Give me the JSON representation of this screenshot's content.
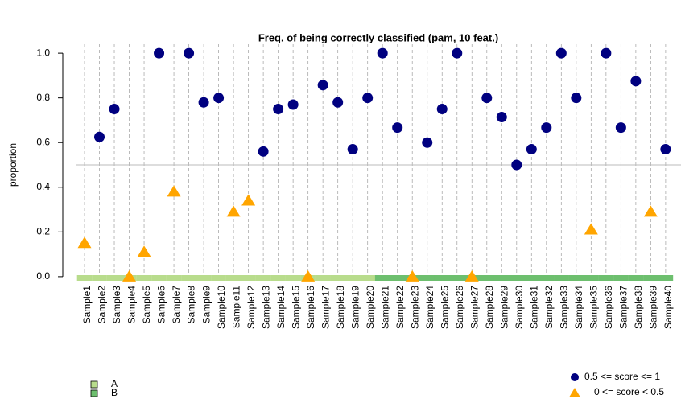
{
  "chart_data": {
    "type": "scatter",
    "title": "Freq. of being correctly classified (pam, 10 feat.)",
    "ylabel": "proportion",
    "categories": [
      "Sample1",
      "Sample2",
      "Sample3",
      "Sample4",
      "Sample5",
      "Sample6",
      "Sample7",
      "Sample8",
      "Sample9",
      "Sample10",
      "Sample11",
      "Sample12",
      "Sample13",
      "Sample14",
      "Sample15",
      "Sample16",
      "Sample17",
      "Sample18",
      "Sample19",
      "Sample20",
      "Sample21",
      "Sample22",
      "Sample23",
      "Sample24",
      "Sample25",
      "Sample26",
      "Sample27",
      "Sample28",
      "Sample29",
      "Sample30",
      "Sample31",
      "Sample32",
      "Sample33",
      "Sample34",
      "Sample35",
      "Sample36",
      "Sample37",
      "Sample38",
      "Sample39",
      "Sample40"
    ],
    "values": [
      0.15,
      0.625,
      0.75,
      0,
      0.11,
      1,
      0.38,
      1,
      0.78,
      0.8,
      0.29,
      0.34,
      0.56,
      0.75,
      0.77,
      0,
      0.857,
      0.78,
      0.57,
      0.8,
      1,
      0.667,
      0,
      0.6,
      0.75,
      1,
      0,
      0.8,
      0.714,
      0.5,
      0.57,
      0.667,
      1,
      0.8,
      0.21,
      1,
      0.667,
      0.875,
      0.29,
      0.57
    ],
    "groups": [
      "A",
      "A",
      "A",
      "A",
      "A",
      "A",
      "A",
      "A",
      "A",
      "A",
      "A",
      "A",
      "A",
      "A",
      "A",
      "A",
      "A",
      "A",
      "A",
      "A",
      "B",
      "B",
      "B",
      "B",
      "B",
      "B",
      "B",
      "B",
      "B",
      "B",
      "B",
      "B",
      "B",
      "B",
      "B",
      "B",
      "B",
      "B",
      "B",
      "B"
    ],
    "group_legend": [
      {
        "name": "A",
        "color": "#b8dc8c"
      },
      {
        "name": "B",
        "color": "#6dbf6e"
      }
    ],
    "threshold": 0.5,
    "score_legend": [
      {
        "name": "0.5 <= score <= 1",
        "color": "#000080",
        "shape": "circle"
      },
      {
        "name": "0 <= score < 0.5",
        "color": "#ffa500",
        "shape": "triangle"
      }
    ],
    "ylim": [
      -0.04,
      1.04
    ],
    "yticks": [
      {
        "value": 0,
        "label": "0.0"
      },
      0.2,
      0.4,
      0.6,
      0.8,
      {
        "value": 1,
        "label": "1.0"
      }
    ]
  }
}
